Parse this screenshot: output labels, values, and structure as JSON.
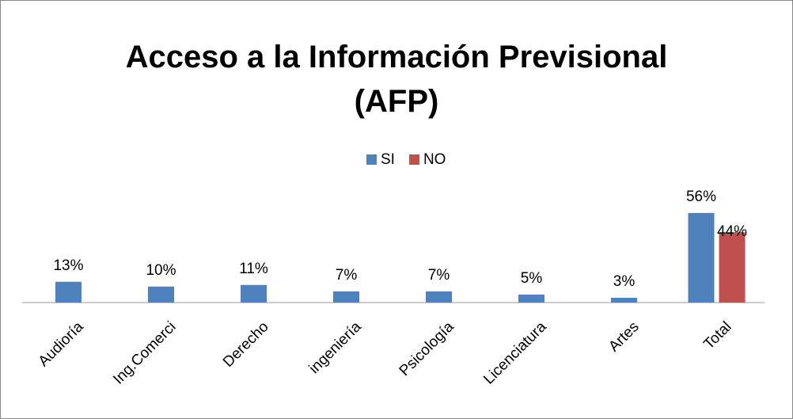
{
  "chart_data": {
    "type": "bar",
    "title": "Acceso a la Información Previsional (AFP)",
    "categories": [
      "Audioría",
      "Ing.Comerci",
      "Derecho",
      "ingeniería",
      "Psicología",
      "Licenciatura",
      "Artes",
      "Total"
    ],
    "series": [
      {
        "name": "SI",
        "color": "#4f81bd",
        "values": [
          13,
          10,
          11,
          7,
          7,
          5,
          3,
          56
        ],
        "value_labels": [
          "13%",
          "10%",
          "11%",
          "7%",
          "7%",
          "5%",
          "3%",
          "56%"
        ]
      },
      {
        "name": "NO",
        "color": "#c0504d",
        "values": [
          null,
          null,
          null,
          null,
          null,
          null,
          null,
          44
        ],
        "value_labels": [
          null,
          null,
          null,
          null,
          null,
          null,
          null,
          "44%"
        ]
      }
    ],
    "legend": "top"
  }
}
